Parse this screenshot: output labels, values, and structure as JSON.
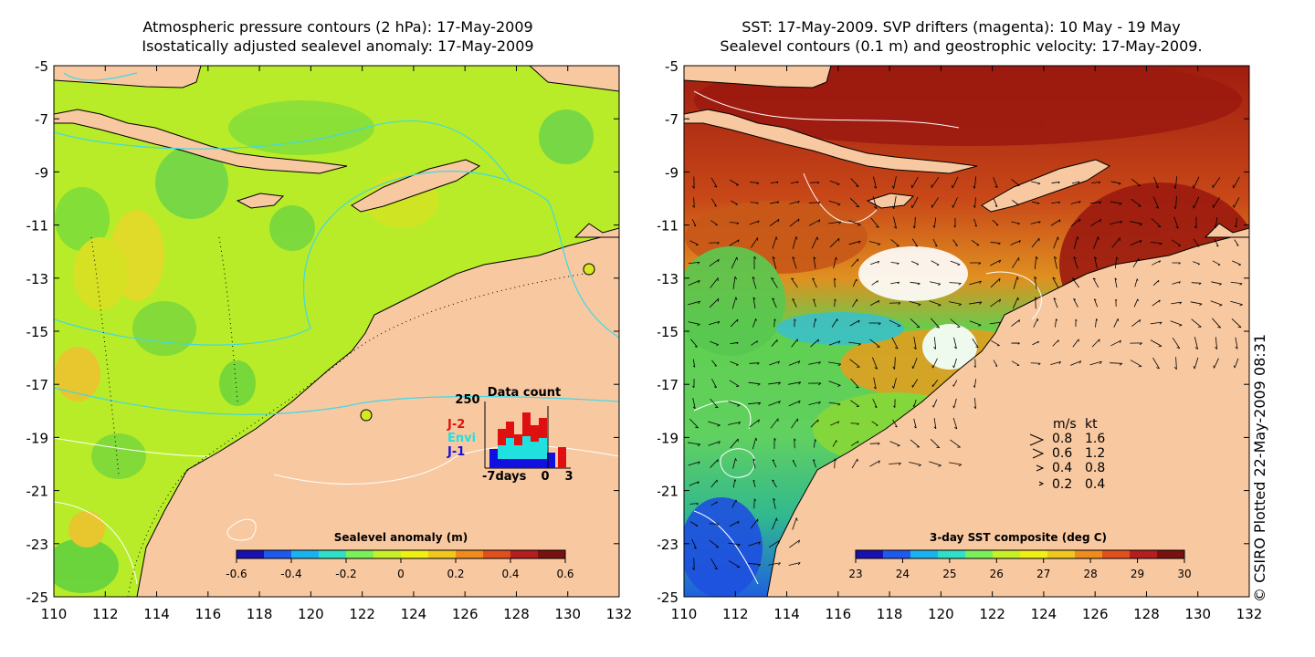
{
  "left_panel": {
    "title_line1": "Atmospheric pressure contours (2 hPa): 17-May-2009",
    "title_line2": "Isostatically adjusted sealevel anomaly: 17-May-2009",
    "colorbar": {
      "title": "Sealevel anomaly (m)",
      "ticks": [
        "-0.6",
        "-0.4",
        "-0.2",
        "0",
        "0.2",
        "0.4",
        "0.6"
      ],
      "colors": [
        "#1a0fb0",
        "#1e5af0",
        "#19b4f0",
        "#2fe0c8",
        "#7af05a",
        "#c8f028",
        "#f0f014",
        "#f0c81e",
        "#f08c1e",
        "#e0501e",
        "#b41e1e",
        "#7a1010"
      ]
    },
    "inset": {
      "title": "Data count",
      "ymax_label": "250",
      "xlabels": [
        "-7days",
        "0",
        "3"
      ],
      "legend": [
        {
          "label": "J-2",
          "color": "#e01010"
        },
        {
          "label": "Envi",
          "color": "#20e0e0"
        },
        {
          "label": "J-1",
          "color": "#1010e0"
        }
      ]
    }
  },
  "right_panel": {
    "title_line1": "SST: 17-May-2009. SVP drifters (magenta): 10 May - 19 May",
    "title_line2": "Sealevel contours (0.1 m) and geostrophic velocity: 17-May-2009.",
    "colorbar": {
      "title": "3-day SST composite (deg C)",
      "ticks": [
        "23",
        "24",
        "25",
        "26",
        "27",
        "28",
        "29",
        "30"
      ],
      "colors": [
        "#1a0fb0",
        "#1e5af0",
        "#19b4f0",
        "#2fe0c8",
        "#7af05a",
        "#c8f028",
        "#f0f014",
        "#f0c81e",
        "#f08c1e",
        "#e0501e",
        "#b41e1e",
        "#7a1010"
      ]
    },
    "velocity_legend": {
      "header_ms": "m/s",
      "header_kt": "kt",
      "rows": [
        {
          "ms": "0.8",
          "kt": "1.6"
        },
        {
          "ms": "0.6",
          "kt": "1.2"
        },
        {
          "ms": "0.4",
          "kt": "0.8"
        },
        {
          "ms": "0.2",
          "kt": "0.4"
        }
      ]
    }
  },
  "axes": {
    "y_ticks": [
      "-5",
      "-7",
      "-9",
      "-11",
      "-13",
      "-15",
      "-17",
      "-19",
      "-21",
      "-23",
      "-25"
    ],
    "x_ticks": [
      "110",
      "112",
      "114",
      "116",
      "118",
      "120",
      "122",
      "124",
      "126",
      "128",
      "130",
      "132"
    ]
  },
  "copyright": "© CSIRO Plotted 22-May-2009 08:31",
  "colors": {
    "land": "#f8c8a0",
    "sea_base_left": "#b8ec28",
    "sea_base_right": "#c8a020"
  }
}
